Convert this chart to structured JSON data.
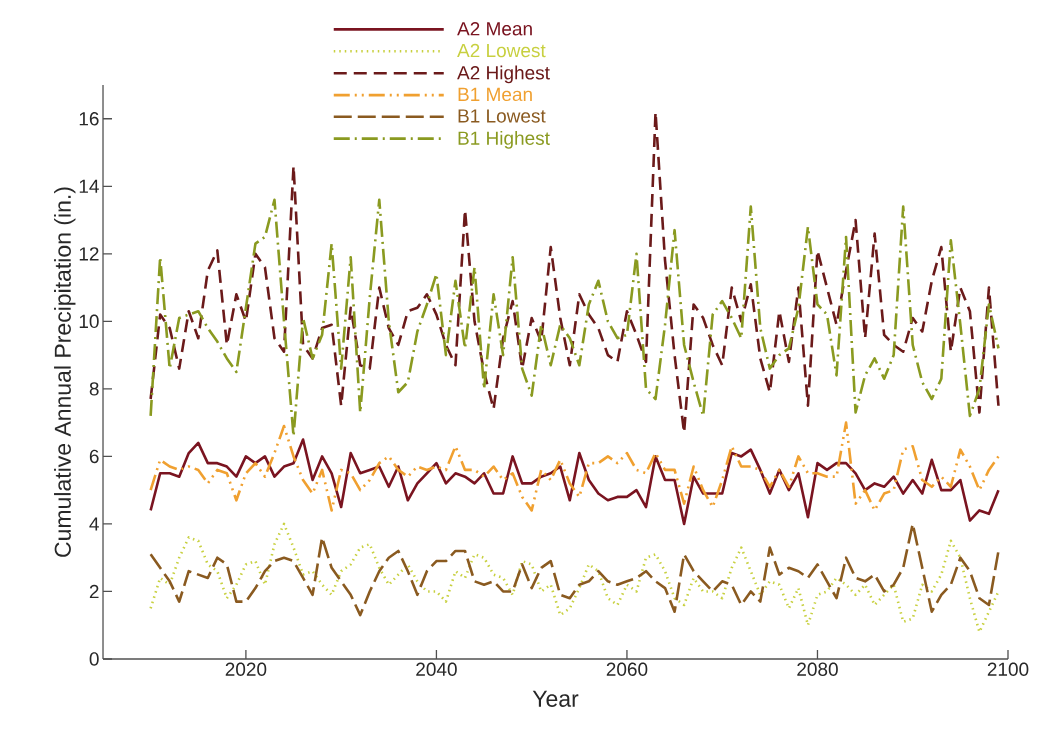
{
  "chart_data": {
    "type": "line",
    "xlabel": "Year",
    "ylabel": "Cumulative Annual Precipitation (in.)",
    "x": [
      2010,
      2011,
      2012,
      2013,
      2014,
      2015,
      2016,
      2017,
      2018,
      2019,
      2020,
      2021,
      2022,
      2023,
      2024,
      2025,
      2026,
      2027,
      2028,
      2029,
      2030,
      2031,
      2032,
      2033,
      2034,
      2035,
      2036,
      2037,
      2038,
      2039,
      2040,
      2041,
      2042,
      2043,
      2044,
      2045,
      2046,
      2047,
      2048,
      2049,
      2050,
      2051,
      2052,
      2053,
      2054,
      2055,
      2056,
      2057,
      2058,
      2059,
      2060,
      2061,
      2062,
      2063,
      2064,
      2065,
      2066,
      2067,
      2068,
      2069,
      2070,
      2071,
      2072,
      2073,
      2074,
      2075,
      2076,
      2077,
      2078,
      2079,
      2080,
      2081,
      2082,
      2083,
      2084,
      2085,
      2086,
      2087,
      2088,
      2089,
      2090,
      2091,
      2092,
      2093,
      2094,
      2095,
      2096,
      2097,
      2098,
      2099
    ],
    "xlim": [
      2005,
      2100
    ],
    "xticks": [
      2020,
      2040,
      2060,
      2080,
      2100
    ],
    "ylim": [
      0,
      17
    ],
    "yticks": [
      0,
      2,
      4,
      6,
      8,
      10,
      12,
      14,
      16
    ],
    "grid": false,
    "legend": "top",
    "marker": "none",
    "series": [
      {
        "name": "A2 Mean",
        "color": "#7a1420",
        "line_style": "solid",
        "values": [
          4.4,
          5.5,
          5.5,
          5.4,
          6.1,
          6.4,
          5.8,
          5.8,
          5.7,
          5.4,
          6.0,
          5.8,
          6.0,
          5.4,
          5.7,
          5.8,
          6.5,
          5.3,
          6.0,
          5.5,
          4.5,
          6.1,
          5.5,
          5.6,
          5.7,
          5.1,
          5.7,
          4.7,
          5.2,
          5.5,
          5.8,
          5.2,
          5.5,
          5.4,
          5.2,
          5.5,
          4.9,
          4.9,
          6.0,
          5.2,
          5.2,
          5.4,
          5.5,
          5.7,
          4.7,
          6.1,
          5.3,
          4.9,
          4.7,
          4.8,
          4.8,
          5.0,
          4.5,
          6.0,
          5.3,
          5.3,
          4.0,
          5.4,
          4.9,
          4.9,
          4.9,
          6.1,
          6.0,
          6.2,
          5.6,
          4.9,
          5.6,
          5.0,
          5.5,
          4.2,
          5.8,
          5.6,
          5.8,
          5.8,
          5.5,
          5.0,
          5.2,
          5.1,
          5.4,
          4.9,
          5.3,
          4.9,
          5.9,
          5.0,
          5.0,
          5.3,
          4.1,
          4.4,
          4.3,
          5.0
        ]
      },
      {
        "name": "A2 Lowest",
        "color": "#c8d040",
        "line_style": "dotted",
        "values": [
          1.5,
          2.4,
          2.2,
          3.0,
          3.6,
          3.5,
          2.8,
          2.6,
          1.8,
          2.2,
          2.8,
          2.9,
          2.2,
          3.4,
          4.0,
          3.3,
          2.5,
          2.6,
          2.2,
          1.9,
          2.6,
          2.8,
          3.3,
          3.4,
          2.7,
          2.2,
          2.5,
          2.8,
          2.3,
          2.0,
          2.0,
          1.7,
          2.6,
          2.4,
          3.1,
          3.0,
          2.5,
          2.4,
          1.9,
          2.9,
          2.8,
          2.0,
          2.2,
          1.3,
          1.5,
          2.1,
          2.8,
          2.6,
          1.8,
          1.6,
          2.2,
          2.0,
          3.0,
          3.1,
          2.6,
          1.8,
          1.6,
          2.4,
          2.0,
          2.0,
          1.8,
          2.7,
          3.3,
          2.6,
          1.9,
          2.3,
          2.2,
          1.5,
          2.1,
          1.0,
          1.9,
          2.0,
          2.4,
          2.2,
          1.9,
          2.2,
          1.6,
          1.9,
          2.2,
          1.1,
          1.2,
          2.2,
          2.0,
          2.5,
          3.5,
          3.0,
          1.8,
          0.8,
          1.4,
          2.0
        ]
      },
      {
        "name": "A2 Highest",
        "color": "#6b1a1a",
        "line_style": "dashed",
        "values": [
          7.7,
          10.2,
          9.8,
          8.6,
          10.3,
          9.5,
          11.5,
          12.1,
          9.3,
          10.8,
          10.0,
          12.0,
          11.6,
          9.5,
          9.1,
          14.6,
          9.3,
          8.9,
          9.8,
          9.9,
          7.5,
          10.4,
          8.7,
          8.6,
          11.0,
          9.8,
          9.3,
          10.3,
          10.4,
          10.8,
          10.2,
          9.3,
          8.7,
          13.3,
          10.0,
          8.5,
          7.4,
          9.5,
          10.6,
          8.6,
          10.1,
          9.4,
          12.2,
          10.1,
          8.7,
          10.8,
          10.2,
          9.8,
          9.0,
          8.8,
          10.3,
          9.6,
          8.8,
          16.2,
          11.8,
          9.0,
          6.7,
          10.5,
          10.1,
          9.3,
          8.7,
          11.0,
          10.0,
          11.1,
          8.9,
          7.9,
          10.3,
          8.8,
          11.0,
          7.5,
          12.1,
          11.0,
          9.9,
          11.5,
          13.0,
          9.5,
          12.6,
          9.6,
          9.3,
          9.1,
          10.1,
          9.7,
          11.2,
          12.2,
          9.1,
          11.0,
          10.3,
          7.3,
          11.0,
          7.5
        ]
      },
      {
        "name": "B1 Mean",
        "color": "#f0a030",
        "line_style": "dashdotdot",
        "values": [
          5.0,
          5.9,
          5.7,
          5.6,
          5.7,
          5.6,
          5.2,
          5.6,
          5.5,
          4.7,
          5.5,
          5.8,
          5.4,
          6.1,
          6.9,
          6.0,
          5.3,
          4.9,
          5.6,
          4.4,
          5.6,
          5.5,
          5.0,
          5.3,
          5.8,
          6.0,
          5.6,
          5.4,
          5.7,
          5.6,
          5.7,
          5.6,
          6.3,
          5.6,
          5.6,
          5.4,
          5.7,
          5.3,
          5.5,
          4.8,
          4.4,
          5.6,
          5.3,
          5.9,
          5.2,
          4.8,
          5.8,
          5.8,
          6.0,
          5.8,
          6.1,
          5.6,
          5.5,
          6.1,
          5.6,
          5.6,
          4.6,
          5.7,
          5.0,
          4.5,
          5.3,
          6.3,
          5.7,
          5.7,
          5.6,
          5.1,
          5.6,
          5.1,
          6.0,
          5.5,
          5.5,
          5.4,
          5.4,
          7.0,
          4.6,
          5.0,
          4.4,
          4.9,
          5.0,
          6.2,
          6.3,
          5.3,
          5.1,
          5.4,
          5.1,
          6.2,
          5.7,
          5.0,
          5.6,
          6.0
        ]
      },
      {
        "name": "B1 Lowest",
        "color": "#8a5a20",
        "line_style": "longdashed",
        "values": [
          3.1,
          2.7,
          2.3,
          1.7,
          2.6,
          2.5,
          2.4,
          3.0,
          2.8,
          1.7,
          1.7,
          2.1,
          2.6,
          2.9,
          3.0,
          2.9,
          2.4,
          1.9,
          3.6,
          2.7,
          2.3,
          1.9,
          1.3,
          2.0,
          2.6,
          3.0,
          3.2,
          2.6,
          1.9,
          2.6,
          2.9,
          2.9,
          3.2,
          3.2,
          2.3,
          2.2,
          2.3,
          2.0,
          2.0,
          2.8,
          2.1,
          2.7,
          2.9,
          1.9,
          1.8,
          2.2,
          2.3,
          2.6,
          2.3,
          2.2,
          2.3,
          2.4,
          2.6,
          2.3,
          2.1,
          1.4,
          3.1,
          2.6,
          2.3,
          2.0,
          2.3,
          2.2,
          1.6,
          2.0,
          1.7,
          3.3,
          2.5,
          2.7,
          2.6,
          2.4,
          2.8,
          2.3,
          1.8,
          3.0,
          2.4,
          2.3,
          2.5,
          2.0,
          2.2,
          2.7,
          4.0,
          2.7,
          1.4,
          1.9,
          2.2,
          3.0,
          2.6,
          1.8,
          1.6,
          3.2
        ]
      },
      {
        "name": "B1 Highest",
        "color": "#8a9a20",
        "line_style": "dashdot",
        "values": [
          7.2,
          11.9,
          8.6,
          10.1,
          10.2,
          10.3,
          9.8,
          9.4,
          8.9,
          8.5,
          10.4,
          12.3,
          12.5,
          13.6,
          10.0,
          6.6,
          10.1,
          8.9,
          9.6,
          12.3,
          8.6,
          11.9,
          7.3,
          10.7,
          13.6,
          10.0,
          7.9,
          8.2,
          9.7,
          10.5,
          11.4,
          9.0,
          11.2,
          9.2,
          11.6,
          8.0,
          10.8,
          9.0,
          11.9,
          8.6,
          7.8,
          9.9,
          8.7,
          9.9,
          9.5,
          8.7,
          10.5,
          11.2,
          10.0,
          9.5,
          9.6,
          12.0,
          8.0,
          7.7,
          9.9,
          12.7,
          9.3,
          8.2,
          7.2,
          10.2,
          10.6,
          10.1,
          9.5,
          13.4,
          9.8,
          8.6,
          9.0,
          9.2,
          10.4,
          12.8,
          10.5,
          10.2,
          8.4,
          12.5,
          7.3,
          8.4,
          8.9,
          8.3,
          9.0,
          13.4,
          9.3,
          8.2,
          7.7,
          8.3,
          12.4,
          9.9,
          7.2,
          8.0,
          10.5,
          9.2
        ]
      }
    ]
  }
}
